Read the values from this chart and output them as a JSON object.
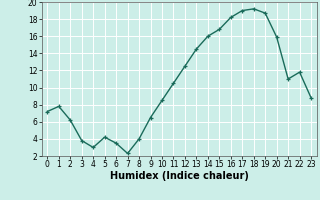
{
  "x": [
    0,
    1,
    2,
    3,
    4,
    5,
    6,
    7,
    8,
    9,
    10,
    11,
    12,
    13,
    14,
    15,
    16,
    17,
    18,
    19,
    20,
    21,
    22,
    23
  ],
  "y": [
    7.2,
    7.8,
    6.2,
    3.8,
    3.0,
    4.2,
    3.5,
    2.3,
    4.0,
    6.5,
    8.5,
    10.5,
    12.5,
    14.5,
    16.0,
    16.8,
    18.2,
    19.0,
    19.2,
    18.7,
    15.9,
    11.0,
    11.8,
    8.8
  ],
  "xlabel": "Humidex (Indice chaleur)",
  "ylim": [
    2,
    20
  ],
  "xlim": [
    -0.5,
    23.5
  ],
  "yticks": [
    2,
    4,
    6,
    8,
    10,
    12,
    14,
    16,
    18,
    20
  ],
  "xticks": [
    0,
    1,
    2,
    3,
    4,
    5,
    6,
    7,
    8,
    9,
    10,
    11,
    12,
    13,
    14,
    15,
    16,
    17,
    18,
    19,
    20,
    21,
    22,
    23
  ],
  "line_color": "#1a6b5a",
  "marker": "+",
  "markersize": 3.5,
  "linewidth": 1.0,
  "bg_color": "#cceee8",
  "grid_color": "#ffffff",
  "tick_labelsize": 5.5,
  "xlabel_fontsize": 7.0,
  "spine_color": "#555555"
}
